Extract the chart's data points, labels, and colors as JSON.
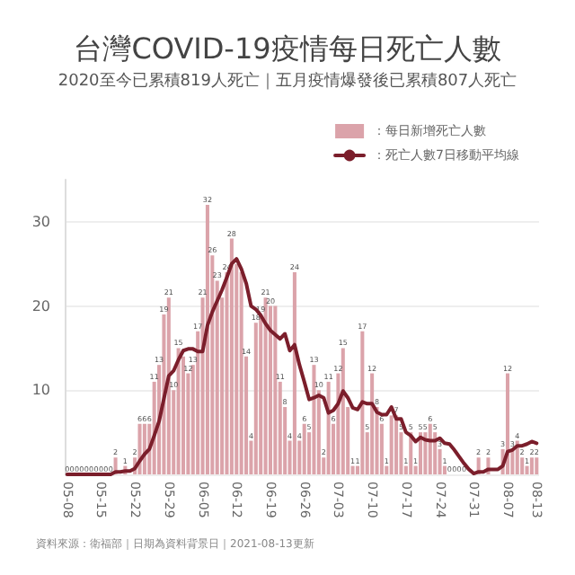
{
  "chart_data": {
    "type": "bar",
    "title": "台灣COVID-19疫情每日死亡人數",
    "subtitle": "2020至今已累積819人死亡｜五月疫情爆發後已累積807人死亡",
    "annotations": [
      "資料來源：衛福部｜日期為資料背景日｜2021-08-13更新"
    ],
    "categories": [
      "05-08",
      null,
      null,
      null,
      null,
      null,
      null,
      "05-15",
      null,
      null,
      null,
      null,
      null,
      null,
      "05-22",
      null,
      null,
      null,
      null,
      null,
      null,
      "05-29",
      null,
      null,
      null,
      null,
      null,
      null,
      "06-05",
      null,
      null,
      null,
      null,
      null,
      null,
      "06-12",
      null,
      null,
      null,
      null,
      null,
      null,
      "06-19",
      null,
      null,
      null,
      null,
      null,
      null,
      "06-26",
      null,
      null,
      null,
      null,
      null,
      null,
      "07-03",
      null,
      null,
      null,
      null,
      null,
      null,
      "07-10",
      null,
      null,
      null,
      null,
      null,
      null,
      "07-17",
      null,
      null,
      null,
      null,
      null,
      null,
      "07-24",
      null,
      null,
      null,
      null,
      null,
      null,
      "07-31",
      null,
      null,
      null,
      null,
      null,
      null,
      "08-07",
      null,
      null,
      null,
      null,
      null,
      "08-13"
    ],
    "series": [
      {
        "name": "：每日新增死亡人數",
        "color": "#dba3aa",
        "values": [
          0,
          0,
          0,
          0,
          0,
          0,
          0,
          0,
          0,
          0,
          2,
          0,
          1,
          0,
          2,
          6,
          6,
          6,
          11,
          13,
          19,
          21,
          10,
          15,
          14,
          12,
          13,
          17,
          21,
          32,
          26,
          23,
          21,
          24,
          28,
          25,
          24,
          14,
          4,
          18,
          19,
          21,
          20,
          20,
          11,
          8,
          4,
          24,
          4,
          6,
          5,
          13,
          10,
          2,
          11,
          6,
          12,
          15,
          8,
          1,
          1,
          17,
          5,
          12,
          8,
          6,
          1,
          7,
          7,
          5,
          1,
          5,
          1,
          5,
          5,
          6,
          5,
          3,
          1,
          0,
          0,
          0,
          0,
          0,
          0,
          2,
          0,
          2,
          0,
          0,
          3,
          12,
          3,
          4,
          2,
          1,
          2,
          2
        ],
        "value_labels": [
          "0",
          "0",
          "0",
          "0",
          "0",
          "0",
          "0",
          "0",
          "0",
          "0",
          "2",
          null,
          "1",
          null,
          "2",
          "6",
          "6",
          "6",
          "11",
          "13",
          "19",
          "21",
          "10",
          "15",
          null,
          "12",
          "13",
          "17",
          "21",
          "32",
          "26",
          "23",
          null,
          "24",
          "28",
          null,
          null,
          "14",
          "4",
          "18",
          "19",
          "21",
          "20",
          null,
          "11",
          "8",
          "4",
          "24",
          "4",
          "6",
          "5",
          "13",
          "10",
          "2",
          "11",
          "6",
          "12",
          "15",
          null,
          "1",
          "1",
          "17",
          "5",
          "12",
          "8",
          "6",
          "1",
          null,
          "7",
          "5",
          "1",
          "5",
          "1",
          "5",
          "5",
          "6",
          "5",
          "3",
          "1",
          "0",
          "0",
          "0",
          "0",
          null,
          null,
          "2",
          null,
          "2",
          null,
          null,
          "3",
          "12",
          "3",
          "4",
          "2",
          "1",
          "2",
          "2"
        ]
      },
      {
        "name": "：死亡人數7日移動平均線",
        "type": "line",
        "color": "#7b1e2b",
        "values": [
          0,
          0,
          0,
          0,
          0,
          0,
          0,
          0,
          0,
          0,
          0.3,
          0.3,
          0.4,
          0.4,
          0.7,
          1.6,
          2.4,
          3.0,
          4.6,
          6.3,
          9.0,
          11.7,
          12.3,
          13.6,
          14.7,
          14.9,
          14.9,
          14.6,
          14.6,
          17.7,
          19.3,
          20.6,
          21.9,
          23.4,
          25.0,
          25.6,
          24.4,
          22.7,
          20.0,
          19.6,
          18.9,
          17.9,
          17.1,
          16.6,
          16.1,
          16.7,
          14.7,
          15.4,
          13.0,
          11.0,
          8.9,
          9.1,
          9.4,
          9.1,
          7.3,
          7.6,
          8.4,
          9.9,
          9.1,
          7.9,
          7.7,
          8.6,
          8.4,
          8.4,
          7.4,
          7.1,
          7.1,
          8.0,
          6.6,
          6.6,
          5.0,
          4.6,
          3.9,
          4.4,
          4.1,
          4.0,
          4.0,
          4.3,
          3.7,
          3.6,
          2.9,
          2.1,
          1.3,
          0.6,
          0.1,
          0.3,
          0.3,
          0.6,
          0.6,
          0.6,
          1.0,
          2.7,
          2.9,
          3.4,
          3.4,
          3.6,
          3.9,
          3.7
        ]
      }
    ],
    "ylim": [
      0,
      35
    ],
    "yticks": [
      {
        "value": 0,
        "label": null
      },
      10,
      20,
      30
    ],
    "grid": "y",
    "legend": "top right",
    "marker": "none",
    "line_style": "solid"
  }
}
